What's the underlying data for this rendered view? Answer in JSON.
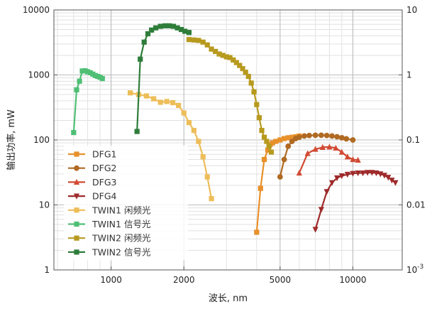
{
  "chart_data": {
    "type": "line",
    "xlabel": "波长, nm",
    "ylabel_left": "输出功率, mW",
    "x_scale": "log",
    "y_scale": "log",
    "xlim": [
      580,
      16000
    ],
    "ylim": [
      1,
      10000
    ],
    "right_ylim": [
      0.001,
      10
    ],
    "x_ticks": [
      {
        "v": 1000,
        "label": "1000"
      },
      {
        "v": 2000,
        "label": "2000"
      },
      {
        "v": 5000,
        "label": "5000"
      },
      {
        "v": 10000,
        "label": "10000"
      }
    ],
    "y_ticks_left": [
      {
        "v": 1,
        "label": "1"
      },
      {
        "v": 10,
        "label": "10"
      },
      {
        "v": 100,
        "label": "100"
      },
      {
        "v": 1000,
        "label": "1000"
      },
      {
        "v": 10000,
        "label": "10000"
      }
    ],
    "y_ticks_right": [
      {
        "v": 10,
        "base": "10",
        "exp": ""
      },
      {
        "v": 1,
        "base": "1",
        "exp": ""
      },
      {
        "v": 0.1,
        "base": "0.1",
        "exp": ""
      },
      {
        "v": 0.01,
        "base": "0.01",
        "exp": ""
      },
      {
        "v": 0.001,
        "base": "10",
        "exp": "-3"
      }
    ],
    "grid": true,
    "legend_position": "lower-left",
    "series": [
      {
        "name": "DFG1",
        "color": "#e8902a",
        "marker": "square",
        "axis": "left",
        "x": [
          4000,
          4150,
          4300,
          4450,
          4550,
          4650,
          4800,
          5000,
          5200,
          5400,
          5600,
          5800,
          6000
        ],
        "y": [
          3.8,
          18,
          50,
          70,
          85,
          90,
          95,
          100,
          105,
          108,
          110,
          112,
          115
        ]
      },
      {
        "name": "DFG2",
        "color": "#b06a22",
        "marker": "circle",
        "axis": "left",
        "x": [
          5000,
          5200,
          5400,
          5600,
          5800,
          6000,
          6300,
          6600,
          7000,
          7400,
          7800,
          8200,
          8600,
          9000,
          9400,
          10000
        ],
        "y": [
          27,
          50,
          80,
          95,
          105,
          110,
          115,
          117,
          118,
          118,
          117,
          115,
          112,
          108,
          104,
          100
        ]
      },
      {
        "name": "DFG3",
        "color": "#d24a34",
        "marker": "triangle-up",
        "axis": "left",
        "x": [
          6000,
          6500,
          7000,
          7500,
          8000,
          8500,
          9000,
          9500,
          10000,
          10500
        ],
        "y": [
          31,
          62,
          72,
          77,
          78,
          75,
          65,
          55,
          50,
          49
        ]
      },
      {
        "name": "DFG4",
        "color": "#9e2a2a",
        "marker": "triangle-down",
        "axis": "left",
        "x": [
          7000,
          7400,
          7800,
          8200,
          8600,
          9000,
          9500,
          10000,
          10500,
          11000,
          11500,
          12000,
          12500,
          13000,
          13500,
          14000,
          14500,
          15000
        ],
        "y": [
          4.2,
          8.5,
          16,
          22,
          26,
          28,
          29.5,
          30.5,
          31,
          31,
          31.5,
          31.5,
          31,
          30,
          28.5,
          26.5,
          24,
          22
        ]
      },
      {
        "name": "TWIN1 闲频光",
        "color": "#edbd58",
        "marker": "square",
        "axis": "left",
        "x": [
          1200,
          1300,
          1400,
          1500,
          1600,
          1700,
          1800,
          1900,
          2000,
          2100,
          2200,
          2300,
          2400,
          2500,
          2600
        ],
        "y": [
          530,
          500,
          475,
          430,
          380,
          390,
          375,
          340,
          260,
          185,
          140,
          95,
          55,
          27,
          12.5
        ]
      },
      {
        "name": "TWIN1 信号光",
        "color": "#4fbf75",
        "marker": "square",
        "axis": "left",
        "x": [
          700,
          720,
          740,
          760,
          780,
          800,
          820,
          840,
          860,
          880,
          900,
          920
        ],
        "y": [
          130,
          590,
          800,
          1150,
          1160,
          1120,
          1080,
          1030,
          980,
          950,
          920,
          880
        ]
      },
      {
        "name": "TWIN2 闲频光",
        "color": "#b79a1e",
        "marker": "square",
        "axis": "left",
        "x": [
          2100,
          2200,
          2300,
          2400,
          2500,
          2600,
          2700,
          2800,
          2900,
          3000,
          3100,
          3200,
          3300,
          3400,
          3500,
          3600,
          3700,
          3800,
          3900,
          4000,
          4100,
          4200,
          4300,
          4400,
          4500,
          4600
        ],
        "y": [
          3500,
          3450,
          3400,
          3200,
          2900,
          2500,
          2300,
          2100,
          2000,
          1900,
          1850,
          1700,
          1550,
          1400,
          1250,
          1100,
          950,
          750,
          550,
          350,
          220,
          140,
          110,
          95,
          80,
          65
        ]
      },
      {
        "name": "TWIN2 信号光",
        "color": "#2e7d3a",
        "marker": "square",
        "axis": "left",
        "x": [
          1280,
          1320,
          1370,
          1420,
          1470,
          1530,
          1600,
          1670,
          1740,
          1810,
          1880,
          1950,
          2020,
          2100
        ],
        "y": [
          135,
          1750,
          3200,
          4300,
          4900,
          5300,
          5600,
          5700,
          5700,
          5600,
          5300,
          5000,
          4700,
          4500
        ]
      }
    ]
  }
}
